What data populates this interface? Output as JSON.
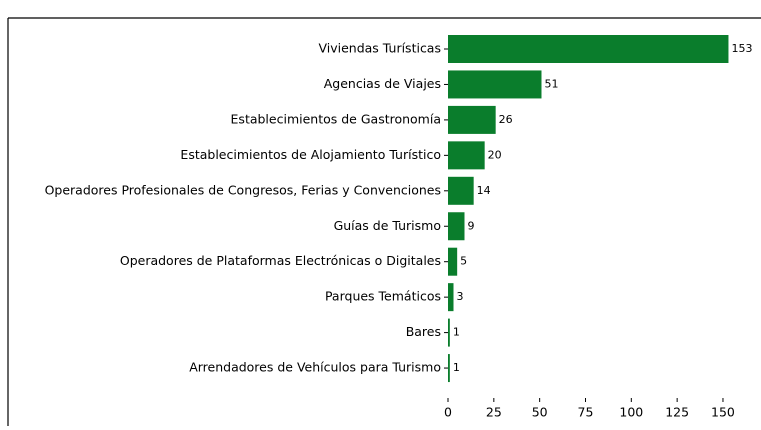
{
  "chart_data": {
    "type": "barh",
    "categories": [
      "Viviendas Turísticas",
      "Agencias de Viajes",
      "Establecimientos de Gastronomía",
      "Establecimientos de Alojamiento Turístico",
      "Operadores Profesionales de Congresos, Ferias y Convenciones",
      "Guías de Turismo",
      "Operadores de Plataformas Electrónicas o Digitales",
      "Parques Temáticos",
      "Bares",
      "Arrendadores de Vehículos para Turismo"
    ],
    "values": [
      153,
      51,
      26,
      20,
      14,
      9,
      5,
      3,
      1,
      1
    ],
    "color": "#0a7d2c",
    "xlim": [
      0,
      160
    ],
    "xticks": [
      0,
      25,
      50,
      75,
      100,
      125,
      150
    ]
  }
}
